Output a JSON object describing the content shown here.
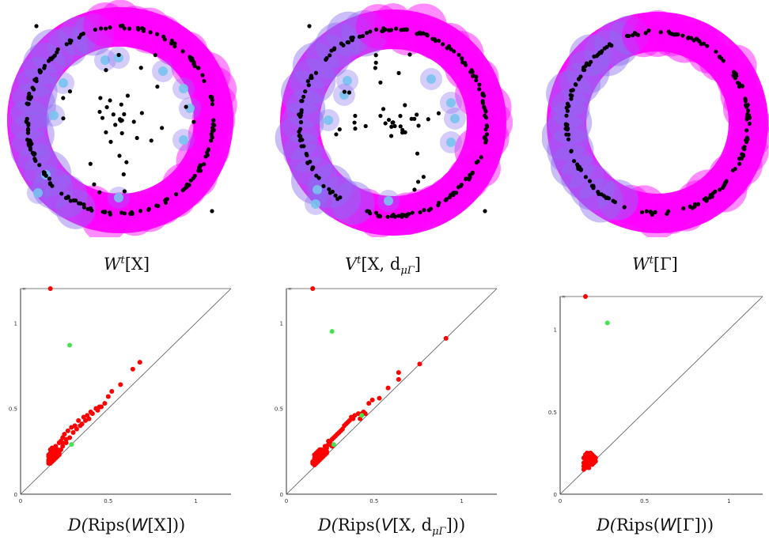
{
  "colors": {
    "blob_magenta": "#ff00ff",
    "blob_violet": "#8a6cf0",
    "blob_lightblue": "#79c3ef",
    "point": "#000000",
    "finite_pair": "#ff0000",
    "essential_pair": "#45e34d",
    "diagonal": "#555555"
  },
  "top_panels": [
    {
      "id": "W-X",
      "caption": {
        "base": "W",
        "sup": "t",
        "arg": "[X]"
      }
    },
    {
      "id": "V-X",
      "caption": {
        "base": "V",
        "sup": "t",
        "arg": "[X, d",
        "sub": "μΓ",
        "close": "]"
      }
    },
    {
      "id": "W-Gamma",
      "caption": {
        "base": "W",
        "sup": "t",
        "arg": "[Γ]"
      }
    }
  ],
  "bottom_captions": [
    {
      "pre": "D(",
      "rips": "Rips",
      "mid": "(",
      "cal": "W",
      "arg": "[X]",
      "close": "))"
    },
    {
      "pre": "D(",
      "rips": "Rips",
      "mid": "(",
      "cal": "V",
      "arg": "[X, d",
      "sub": "μΓ",
      "close": "]))"
    },
    {
      "pre": "D(",
      "rips": "Rips",
      "mid": "(",
      "cal": "W",
      "arg": "[Γ]",
      "close": "))"
    }
  ],
  "chart_data": [
    {
      "type": "scatter",
      "title": "",
      "xlim": [
        0,
        1.2
      ],
      "ylim": [
        0,
        1.2
      ],
      "xticks": [
        "0",
        "0.5",
        "1"
      ],
      "yticks": [
        "0",
        "0.5",
        "1"
      ],
      "top_label": "∞",
      "diagonal": true,
      "series": [
        {
          "color": "red",
          "points": [
            [
              0.17,
              1.2
            ],
            [
              0.68,
              0.77
            ],
            [
              0.64,
              0.73
            ],
            [
              0.57,
              0.64
            ],
            [
              0.52,
              0.6
            ],
            [
              0.5,
              0.57
            ],
            [
              0.45,
              0.51
            ],
            [
              0.43,
              0.5
            ],
            [
              0.4,
              0.48
            ],
            [
              0.38,
              0.46
            ],
            [
              0.36,
              0.45
            ],
            [
              0.33,
              0.43
            ],
            [
              0.31,
              0.4
            ],
            [
              0.29,
              0.39
            ],
            [
              0.27,
              0.37
            ],
            [
              0.25,
              0.35
            ],
            [
              0.24,
              0.33
            ],
            [
              0.23,
              0.31
            ],
            [
              0.22,
              0.3
            ],
            [
              0.2,
              0.28
            ],
            [
              0.19,
              0.27
            ],
            [
              0.18,
              0.25
            ],
            [
              0.17,
              0.24
            ],
            [
              0.16,
              0.23
            ],
            [
              0.16,
              0.22
            ],
            [
              0.17,
              0.21
            ],
            [
              0.18,
              0.21
            ],
            [
              0.18,
              0.2
            ],
            [
              0.19,
              0.22
            ],
            [
              0.2,
              0.23
            ],
            [
              0.21,
              0.24
            ],
            [
              0.2,
              0.25
            ],
            [
              0.19,
              0.24
            ],
            [
              0.18,
              0.23
            ],
            [
              0.17,
              0.22
            ],
            [
              0.16,
              0.2
            ],
            [
              0.16,
              0.19
            ],
            [
              0.17,
              0.19
            ],
            [
              0.18,
              0.19
            ],
            [
              0.19,
              0.2
            ],
            [
              0.2,
              0.21
            ],
            [
              0.21,
              0.22
            ],
            [
              0.22,
              0.23
            ],
            [
              0.22,
              0.25
            ],
            [
              0.23,
              0.26
            ],
            [
              0.24,
              0.28
            ],
            [
              0.26,
              0.3
            ],
            [
              0.28,
              0.33
            ],
            [
              0.3,
              0.36
            ],
            [
              0.32,
              0.38
            ],
            [
              0.35,
              0.41
            ],
            [
              0.37,
              0.43
            ],
            [
              0.41,
              0.47
            ],
            [
              0.44,
              0.49
            ],
            [
              0.48,
              0.53
            ],
            [
              0.46,
              0.51
            ],
            [
              0.39,
              0.44
            ],
            [
              0.34,
              0.4
            ],
            [
              0.16,
              0.18
            ],
            [
              0.17,
              0.18
            ],
            [
              0.19,
              0.21
            ],
            [
              0.21,
              0.26
            ],
            [
              0.2,
              0.27
            ],
            [
              0.17,
              0.26
            ],
            [
              0.18,
              0.27
            ],
            [
              0.22,
              0.24
            ],
            [
              0.24,
              0.3
            ],
            [
              0.26,
              0.32
            ]
          ]
        },
        {
          "color": "green",
          "points": [
            [
              0.28,
              0.87
            ],
            [
              0.29,
              0.29
            ]
          ]
        }
      ]
    },
    {
      "type": "scatter",
      "title": "",
      "xlim": [
        0,
        1.2
      ],
      "ylim": [
        0,
        1.2
      ],
      "xticks": [
        "0",
        "0.5",
        "1"
      ],
      "yticks": [
        "0",
        "0.5",
        "1"
      ],
      "top_label": "∞",
      "diagonal": true,
      "series": [
        {
          "color": "red",
          "points": [
            [
              0.15,
              1.2
            ],
            [
              0.91,
              0.91
            ],
            [
              0.76,
              0.76
            ],
            [
              0.64,
              0.71
            ],
            [
              0.64,
              0.67
            ],
            [
              0.58,
              0.62
            ],
            [
              0.53,
              0.56
            ],
            [
              0.49,
              0.55
            ],
            [
              0.47,
              0.53
            ],
            [
              0.44,
              0.48
            ],
            [
              0.43,
              0.47
            ],
            [
              0.41,
              0.47
            ],
            [
              0.39,
              0.46
            ],
            [
              0.38,
              0.44
            ],
            [
              0.36,
              0.43
            ],
            [
              0.34,
              0.41
            ],
            [
              0.32,
              0.38
            ],
            [
              0.3,
              0.36
            ],
            [
              0.28,
              0.34
            ],
            [
              0.26,
              0.32
            ],
            [
              0.25,
              0.3
            ],
            [
              0.24,
              0.29
            ],
            [
              0.23,
              0.27
            ],
            [
              0.22,
              0.26
            ],
            [
              0.21,
              0.25
            ],
            [
              0.2,
              0.24
            ],
            [
              0.19,
              0.23
            ],
            [
              0.18,
              0.22
            ],
            [
              0.17,
              0.21
            ],
            [
              0.16,
              0.2
            ],
            [
              0.15,
              0.19
            ],
            [
              0.15,
              0.18
            ],
            [
              0.16,
              0.17
            ],
            [
              0.17,
              0.18
            ],
            [
              0.18,
              0.19
            ],
            [
              0.19,
              0.2
            ],
            [
              0.2,
              0.21
            ],
            [
              0.21,
              0.22
            ],
            [
              0.22,
              0.23
            ],
            [
              0.23,
              0.24
            ],
            [
              0.16,
              0.23
            ],
            [
              0.17,
              0.24
            ],
            [
              0.18,
              0.25
            ],
            [
              0.19,
              0.26
            ],
            [
              0.2,
              0.26
            ],
            [
              0.16,
              0.21
            ],
            [
              0.17,
              0.22
            ],
            [
              0.18,
              0.24
            ],
            [
              0.19,
              0.24
            ],
            [
              0.2,
              0.22
            ],
            [
              0.21,
              0.24
            ],
            [
              0.22,
              0.28
            ],
            [
              0.24,
              0.31
            ],
            [
              0.27,
              0.33
            ],
            [
              0.29,
              0.35
            ],
            [
              0.31,
              0.37
            ],
            [
              0.33,
              0.4
            ],
            [
              0.35,
              0.42
            ],
            [
              0.37,
              0.45
            ],
            [
              0.42,
              0.44
            ],
            [
              0.45,
              0.47
            ],
            [
              0.26,
              0.28
            ],
            [
              0.23,
              0.25
            ]
          ]
        },
        {
          "color": "green",
          "points": [
            [
              0.26,
              0.95
            ],
            [
              0.27,
              0.29
            ],
            [
              0.43,
              0.46
            ]
          ]
        }
      ]
    },
    {
      "type": "scatter",
      "title": "",
      "xlim": [
        0,
        1.2
      ],
      "ylim": [
        0,
        1.2
      ],
      "xticks": [
        "0",
        "0.5",
        "1"
      ],
      "yticks": [
        "0",
        "0.5",
        "1"
      ],
      "top_label": "∞",
      "diagonal": true,
      "series": [
        {
          "color": "red",
          "points": [
            [
              0.15,
              1.2
            ],
            [
              0.14,
              0.15
            ],
            [
              0.15,
              0.16
            ],
            [
              0.16,
              0.17
            ],
            [
              0.17,
              0.18
            ],
            [
              0.18,
              0.19
            ],
            [
              0.19,
              0.2
            ],
            [
              0.2,
              0.21
            ],
            [
              0.15,
              0.18
            ],
            [
              0.16,
              0.19
            ],
            [
              0.17,
              0.2
            ],
            [
              0.18,
              0.21
            ],
            [
              0.19,
              0.22
            ],
            [
              0.15,
              0.2
            ],
            [
              0.16,
              0.21
            ],
            [
              0.17,
              0.22
            ],
            [
              0.18,
              0.23
            ],
            [
              0.15,
              0.22
            ],
            [
              0.16,
              0.23
            ],
            [
              0.17,
              0.24
            ],
            [
              0.15,
              0.24
            ],
            [
              0.16,
              0.25
            ],
            [
              0.14,
              0.17
            ],
            [
              0.14,
              0.19
            ],
            [
              0.17,
              0.16
            ],
            [
              0.19,
              0.18
            ],
            [
              0.2,
              0.19
            ],
            [
              0.21,
              0.2
            ],
            [
              0.2,
              0.23
            ],
            [
              0.21,
              0.22
            ],
            [
              0.19,
              0.24
            ],
            [
              0.18,
              0.25
            ],
            [
              0.14,
              0.22
            ]
          ]
        },
        {
          "color": "green",
          "points": [
            [
              0.28,
              1.04
            ]
          ]
        }
      ]
    }
  ]
}
